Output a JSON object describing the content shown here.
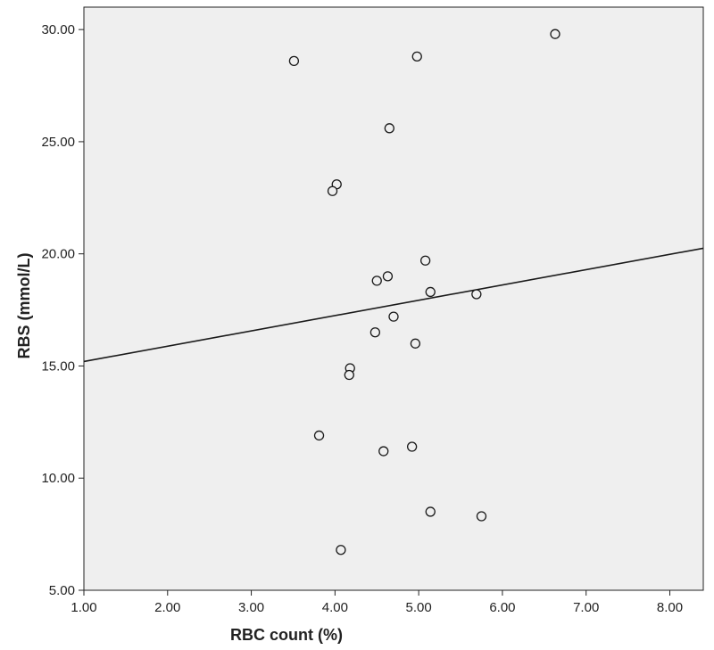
{
  "chart_data": {
    "type": "scatter",
    "xlabel": "RBC count (%)",
    "ylabel": "RBS (mmol/L)",
    "xlim": [
      1.0,
      8.4
    ],
    "ylim": [
      5.0,
      31.0
    ],
    "x_ticks": [
      1.0,
      2.0,
      3.0,
      4.0,
      5.0,
      6.0,
      7.0,
      8.0
    ],
    "y_ticks": [
      5.0,
      10.0,
      15.0,
      20.0,
      25.0,
      30.0
    ],
    "x_tick_labels": [
      "1.00",
      "2.00",
      "3.00",
      "4.00",
      "5.00",
      "6.00",
      "7.00",
      "8.00"
    ],
    "y_tick_labels": [
      "5.00",
      "10.00",
      "15.00",
      "20.00",
      "25.00",
      "30.00"
    ],
    "grid": false,
    "series": [
      {
        "marker": "open-circle",
        "x": [
          6.63,
          3.51,
          4.98,
          4.65,
          4.02,
          3.97,
          5.08,
          4.63,
          4.5,
          5.14,
          5.69,
          4.7,
          4.48,
          4.96,
          4.18,
          4.17,
          3.81,
          4.92,
          4.58,
          5.14,
          5.75,
          4.07
        ],
        "y": [
          29.8,
          28.6,
          28.8,
          25.6,
          23.1,
          22.8,
          19.7,
          19.0,
          18.8,
          18.3,
          18.2,
          17.2,
          16.5,
          16.0,
          14.9,
          14.6,
          11.9,
          11.4,
          11.2,
          8.5,
          8.3,
          6.8
        ]
      }
    ],
    "fit_line": {
      "x": [
        1.0,
        8.4
      ],
      "y": [
        15.2,
        20.25
      ]
    },
    "colors": {
      "plot_background": "#efefef",
      "marker_stroke": "#1a1a1a",
      "marker_fill": "#efefef",
      "axis": "#222222",
      "fit_line": "#1a1a1a"
    }
  }
}
